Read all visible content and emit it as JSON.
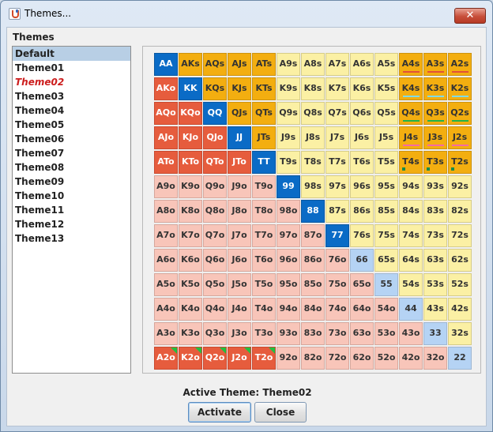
{
  "window": {
    "title": "Themes...",
    "close_glyph": "✕"
  },
  "themes_label": "Themes",
  "themes": [
    {
      "name": "Default",
      "selected": true,
      "active": false
    },
    {
      "name": "Theme01",
      "selected": false,
      "active": false
    },
    {
      "name": "Theme02",
      "selected": false,
      "active": true
    },
    {
      "name": "Theme03",
      "selected": false,
      "active": false
    },
    {
      "name": "Theme04",
      "selected": false,
      "active": false
    },
    {
      "name": "Theme05",
      "selected": false,
      "active": false
    },
    {
      "name": "Theme06",
      "selected": false,
      "active": false
    },
    {
      "name": "Theme07",
      "selected": false,
      "active": false
    },
    {
      "name": "Theme08",
      "selected": false,
      "active": false
    },
    {
      "name": "Theme09",
      "selected": false,
      "active": false
    },
    {
      "name": "Theme10",
      "selected": false,
      "active": false
    },
    {
      "name": "Theme11",
      "selected": false,
      "active": false
    },
    {
      "name": "Theme12",
      "selected": false,
      "active": false
    },
    {
      "name": "Theme13",
      "selected": false,
      "active": false
    }
  ],
  "grid": {
    "rows": [
      [
        "AA",
        "AKs",
        "AQs",
        "AJs",
        "ATs",
        "A9s",
        "A8s",
        "A7s",
        "A6s",
        "A5s",
        "A4s",
        "A3s",
        "A2s"
      ],
      [
        "AKo",
        "KK",
        "KQs",
        "KJs",
        "KTs",
        "K9s",
        "K8s",
        "K7s",
        "K6s",
        "K5s",
        "K4s",
        "K3s",
        "K2s"
      ],
      [
        "AQo",
        "KQo",
        "QQ",
        "QJs",
        "QTs",
        "Q9s",
        "Q8s",
        "Q7s",
        "Q6s",
        "Q5s",
        "Q4s",
        "Q3s",
        "Q2s"
      ],
      [
        "AJo",
        "KJo",
        "QJo",
        "JJ",
        "JTs",
        "J9s",
        "J8s",
        "J7s",
        "J6s",
        "J5s",
        "J4s",
        "J3s",
        "J2s"
      ],
      [
        "ATo",
        "KTo",
        "QTo",
        "JTo",
        "TT",
        "T9s",
        "T8s",
        "T7s",
        "T6s",
        "T5s",
        "T4s",
        "T3s",
        "T2s"
      ],
      [
        "A9o",
        "K9o",
        "Q9o",
        "J9o",
        "T9o",
        "99",
        "98s",
        "97s",
        "96s",
        "95s",
        "94s",
        "93s",
        "92s"
      ],
      [
        "A8o",
        "K8o",
        "Q8o",
        "J8o",
        "T8o",
        "98o",
        "88",
        "87s",
        "86s",
        "85s",
        "84s",
        "83s",
        "82s"
      ],
      [
        "A7o",
        "K7o",
        "Q7o",
        "J7o",
        "T7o",
        "97o",
        "87o",
        "77",
        "76s",
        "75s",
        "74s",
        "73s",
        "72s"
      ],
      [
        "A6o",
        "K6o",
        "Q6o",
        "J6o",
        "T6o",
        "96o",
        "86o",
        "76o",
        "66",
        "65s",
        "64s",
        "63s",
        "62s"
      ],
      [
        "A5o",
        "K5o",
        "Q5o",
        "J5o",
        "T5o",
        "95o",
        "85o",
        "75o",
        "65o",
        "55",
        "54s",
        "53s",
        "52s"
      ],
      [
        "A4o",
        "K4o",
        "Q4o",
        "J4o",
        "T4o",
        "94o",
        "84o",
        "74o",
        "64o",
        "54o",
        "44",
        "43s",
        "42s"
      ],
      [
        "A3o",
        "K3o",
        "Q3o",
        "J3o",
        "T3o",
        "93o",
        "83o",
        "73o",
        "63o",
        "53o",
        "43o",
        "33",
        "32s"
      ],
      [
        "A2o",
        "K2o",
        "Q2o",
        "J2o",
        "T2o",
        "92o",
        "82o",
        "72o",
        "62o",
        "52o",
        "42o",
        "32o",
        "22"
      ]
    ],
    "colors": {
      "pair": "#0a6bc6",
      "pair_light": "#b5d3f4",
      "raise_offsuit": "#e65c3d",
      "fold_offsuit": "#f8c5b9",
      "raise_suited": "#f3ae10",
      "fold_suited": "#fbf0a4"
    },
    "marker_colors": {
      "red": "#e2513a",
      "cyan": "#7fdbe6",
      "green": "#21b34b",
      "pink": "#f36aa5",
      "dot": "#1a8c4a",
      "corner": "#20c040"
    }
  },
  "active_theme": {
    "label": "Active Theme:",
    "name": "Theme02"
  },
  "buttons": {
    "activate": "Activate",
    "close": "Close"
  }
}
